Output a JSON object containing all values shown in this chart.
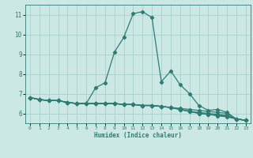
{
  "title": "",
  "xlabel": "Humidex (Indice chaleur)",
  "ylabel": "",
  "bg_color": "#cce8e4",
  "grid_color": "#aacfcc",
  "line_color": "#2e7d73",
  "xlim": [
    -0.5,
    23.5
  ],
  "ylim": [
    5.5,
    11.5
  ],
  "yticks": [
    6,
    7,
    8,
    9,
    10,
    11
  ],
  "xticks": [
    0,
    1,
    2,
    3,
    4,
    5,
    6,
    7,
    8,
    9,
    10,
    11,
    12,
    13,
    14,
    15,
    16,
    17,
    18,
    19,
    20,
    21,
    22,
    23
  ],
  "curves": [
    [
      6.8,
      6.7,
      6.65,
      6.65,
      6.55,
      6.5,
      6.5,
      7.3,
      7.55,
      9.1,
      9.85,
      11.05,
      11.15,
      10.85,
      7.6,
      8.15,
      7.45,
      7.0,
      6.4,
      6.15,
      6.2,
      6.05,
      5.7,
      5.65
    ],
    [
      6.8,
      6.7,
      6.65,
      6.65,
      6.55,
      6.5,
      6.5,
      6.5,
      6.5,
      6.5,
      6.45,
      6.45,
      6.4,
      6.4,
      6.35,
      6.3,
      6.25,
      6.2,
      6.15,
      6.1,
      6.05,
      6.0,
      5.72,
      5.65
    ],
    [
      6.8,
      6.7,
      6.65,
      6.65,
      6.55,
      6.5,
      6.5,
      6.5,
      6.5,
      6.5,
      6.45,
      6.45,
      6.4,
      6.4,
      6.35,
      6.3,
      6.2,
      6.1,
      6.05,
      6.0,
      5.95,
      5.9,
      5.72,
      5.65
    ],
    [
      6.8,
      6.7,
      6.65,
      6.65,
      6.55,
      6.5,
      6.5,
      6.5,
      6.5,
      6.5,
      6.45,
      6.45,
      6.4,
      6.4,
      6.35,
      6.3,
      6.2,
      6.1,
      6.0,
      5.95,
      5.9,
      5.85,
      5.72,
      5.65
    ],
    [
      6.8,
      6.7,
      6.65,
      6.65,
      6.55,
      6.5,
      6.5,
      6.5,
      6.5,
      6.5,
      6.45,
      6.45,
      6.4,
      6.4,
      6.35,
      6.3,
      6.2,
      6.1,
      6.0,
      5.95,
      5.88,
      5.82,
      5.72,
      5.65
    ]
  ],
  "marker": "D",
  "markersize": 2.2,
  "linewidth": 0.9
}
